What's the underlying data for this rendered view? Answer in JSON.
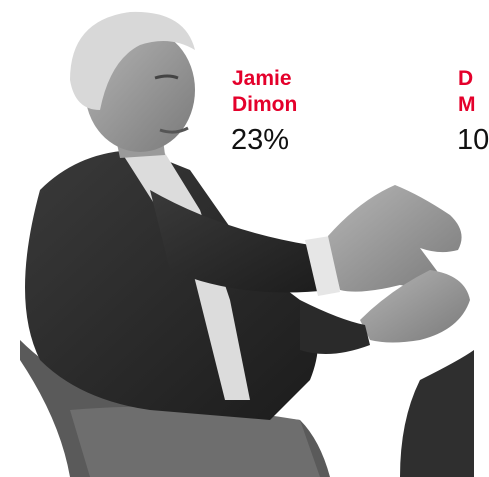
{
  "people": [
    {
      "first_name": "Jamie",
      "last_name": "Dimon",
      "percentage": "23%"
    },
    {
      "first_name": "D",
      "last_name": "M",
      "percentage": "10"
    }
  ]
}
